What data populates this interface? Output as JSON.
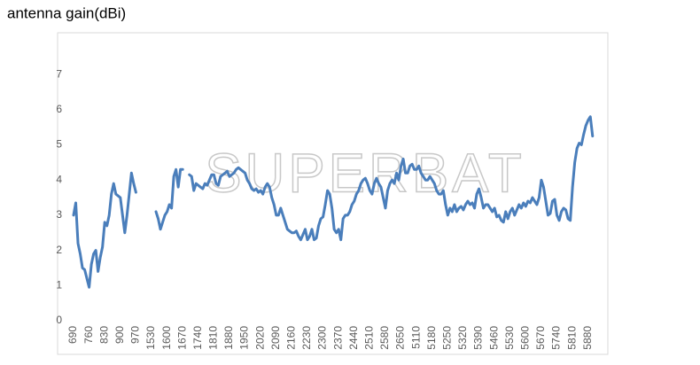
{
  "chart_data": {
    "type": "line",
    "title": "antenna gain(dBi)",
    "watermark": "SUPERBAT",
    "categories": [
      690,
      null,
      null,
      null,
      null,
      null,
      null,
      760,
      null,
      null,
      null,
      null,
      null,
      null,
      830,
      null,
      null,
      null,
      null,
      null,
      null,
      900,
      null,
      null,
      null,
      null,
      null,
      null,
      970,
      null,
      null,
      null,
      null,
      null,
      null,
      1530,
      null,
      null,
      null,
      null,
      null,
      null,
      1600,
      null,
      null,
      null,
      null,
      null,
      null,
      1670,
      null,
      null,
      null,
      null,
      null,
      null,
      1740,
      null,
      null,
      null,
      null,
      null,
      null,
      1810,
      null,
      null,
      null,
      null,
      null,
      null,
      1880,
      null,
      null,
      null,
      null,
      null,
      null,
      1950,
      null,
      null,
      null,
      null,
      null,
      null,
      2020,
      null,
      null,
      null,
      null,
      null,
      null,
      2090,
      null,
      null,
      null,
      null,
      null,
      null,
      2160,
      null,
      null,
      null,
      null,
      null,
      null,
      2230,
      null,
      null,
      null,
      null,
      null,
      null,
      2300,
      null,
      null,
      null,
      null,
      null,
      null,
      2370,
      null,
      null,
      null,
      null,
      null,
      null,
      2440,
      null,
      null,
      null,
      null,
      null,
      null,
      2510,
      null,
      null,
      null,
      null,
      null,
      null,
      2580,
      null,
      null,
      null,
      null,
      null,
      null,
      2650,
      null,
      null,
      null,
      null,
      null,
      null,
      5110,
      null,
      null,
      null,
      null,
      null,
      null,
      5180,
      null,
      null,
      null,
      null,
      null,
      null,
      5250,
      null,
      null,
      null,
      null,
      null,
      null,
      5320,
      null,
      null,
      null,
      null,
      null,
      null,
      5390,
      null,
      null,
      null,
      null,
      null,
      null,
      5460,
      null,
      null,
      null,
      null,
      null,
      null,
      5530,
      null,
      null,
      null,
      null,
      null,
      null,
      5600,
      null,
      null,
      null,
      null,
      null,
      null,
      5670,
      null,
      null,
      null,
      null,
      null,
      null,
      5740,
      null,
      null,
      null,
      null,
      null,
      null,
      5810,
      null,
      null,
      null,
      null,
      null,
      null,
      5880,
      null,
      null
    ],
    "series": [
      {
        "name": "antenna gain",
        "color": "#4a7ebb",
        "values": [
          3.0,
          3.35,
          2.2,
          1.9,
          1.5,
          1.45,
          1.2,
          0.95,
          1.6,
          1.9,
          2.0,
          1.4,
          1.8,
          2.1,
          2.8,
          2.7,
          3.0,
          3.6,
          3.9,
          3.6,
          3.55,
          3.5,
          3.0,
          2.5,
          3.0,
          3.6,
          4.2,
          3.9,
          3.65,
          null,
          null,
          null,
          null,
          null,
          null,
          null,
          null,
          3.1,
          2.9,
          2.6,
          2.8,
          3.0,
          3.1,
          3.3,
          3.2,
          4.1,
          4.3,
          3.8,
          4.3,
          4.3,
          null,
          null,
          4.15,
          4.1,
          3.7,
          3.9,
          3.85,
          3.8,
          3.75,
          3.9,
          3.85,
          4.0,
          4.15,
          4.15,
          3.9,
          3.85,
          4.1,
          4.15,
          4.2,
          4.25,
          4.1,
          4.15,
          4.2,
          4.3,
          4.35,
          4.3,
          4.25,
          4.2,
          4.0,
          3.9,
          3.75,
          3.7,
          3.75,
          3.65,
          3.7,
          3.6,
          3.8,
          3.9,
          3.8,
          3.5,
          3.3,
          3.0,
          3.0,
          3.2,
          3.0,
          2.8,
          2.6,
          2.55,
          2.5,
          2.5,
          2.55,
          2.4,
          2.3,
          2.45,
          2.6,
          2.3,
          2.4,
          2.6,
          2.3,
          2.35,
          2.7,
          2.9,
          2.95,
          3.3,
          3.7,
          3.6,
          3.2,
          2.6,
          2.5,
          2.6,
          2.3,
          2.9,
          3.0,
          3.0,
          3.1,
          3.3,
          3.4,
          3.6,
          3.7,
          3.9,
          4.0,
          4.05,
          3.9,
          3.7,
          3.6,
          3.9,
          4.05,
          3.9,
          3.8,
          3.5,
          3.2,
          3.7,
          3.9,
          4.0,
          3.9,
          4.2,
          4.0,
          4.4,
          4.6,
          4.2,
          4.2,
          4.4,
          4.45,
          4.3,
          4.3,
          4.4,
          4.2,
          4.1,
          4.0,
          4.0,
          4.1,
          4.0,
          3.9,
          3.7,
          3.6,
          3.6,
          3.7,
          3.3,
          3.0,
          3.2,
          3.1,
          3.3,
          3.1,
          3.2,
          3.25,
          3.15,
          3.3,
          3.4,
          3.3,
          3.35,
          3.2,
          3.6,
          3.75,
          3.5,
          3.2,
          3.3,
          3.3,
          3.2,
          3.1,
          3.2,
          2.95,
          3.0,
          2.85,
          2.8,
          3.1,
          2.9,
          3.1,
          3.2,
          3.0,
          3.15,
          3.3,
          3.2,
          3.35,
          3.25,
          3.4,
          3.35,
          3.5,
          3.4,
          3.3,
          3.5,
          4.0,
          3.8,
          3.4,
          3.0,
          3.05,
          3.4,
          3.45,
          3.0,
          2.85,
          3.1,
          3.2,
          3.15,
          2.9,
          2.85,
          3.8,
          4.5,
          4.9,
          5.05,
          5.0,
          5.3,
          5.55,
          5.7,
          5.8,
          5.25
        ]
      }
    ],
    "ylim": [
      0,
      8
    ],
    "yticks": [
      0,
      1,
      2,
      3,
      4,
      5,
      6,
      7
    ],
    "grid": false
  }
}
